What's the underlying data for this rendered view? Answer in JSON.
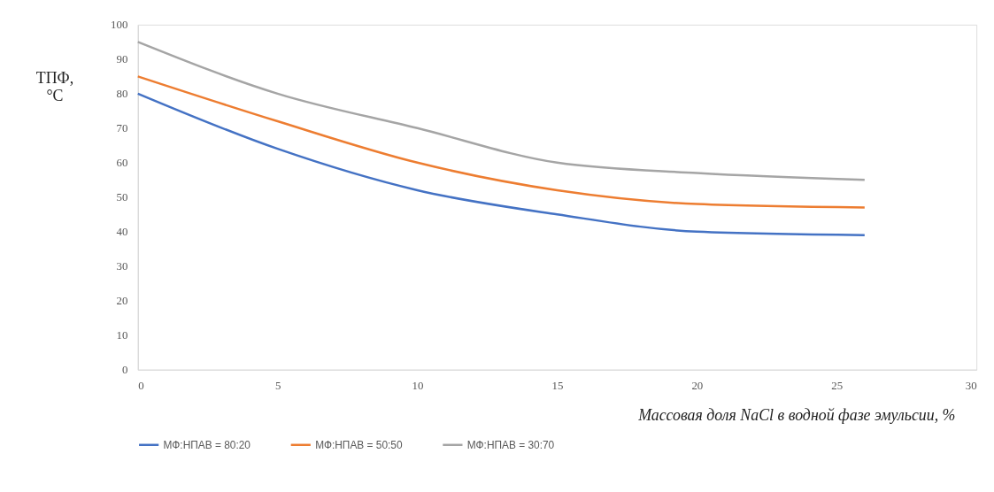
{
  "chart_data": {
    "type": "line",
    "xlabel": "Массовая доля NaCl в водной фазе эмульсии, %",
    "ylabel": "ТПФ, °C",
    "x": [
      0,
      5,
      10,
      15,
      20,
      26
    ],
    "series": [
      {
        "name": "МФ:НПАВ = 80:20",
        "color": "#4472c4",
        "values": [
          80,
          64,
          52,
          45,
          40,
          39
        ]
      },
      {
        "name": "МФ:НПАВ = 50:50",
        "color": "#ed7d31",
        "values": [
          85,
          72,
          60,
          52,
          48,
          47
        ]
      },
      {
        "name": "МФ:НПАВ = 30:70",
        "color": "#a5a5a5",
        "values": [
          95,
          80,
          70,
          60,
          57,
          55
        ]
      }
    ],
    "xlim": [
      0,
      30
    ],
    "xticks": [
      0,
      5,
      10,
      15,
      20,
      25,
      30
    ],
    "ylim": [
      0,
      100
    ],
    "yticks": [
      0,
      10,
      20,
      30,
      40,
      50,
      60,
      70,
      80,
      90,
      100
    ],
    "grid": false,
    "legend": "bottom",
    "marker": "none",
    "line_style": "solid"
  }
}
